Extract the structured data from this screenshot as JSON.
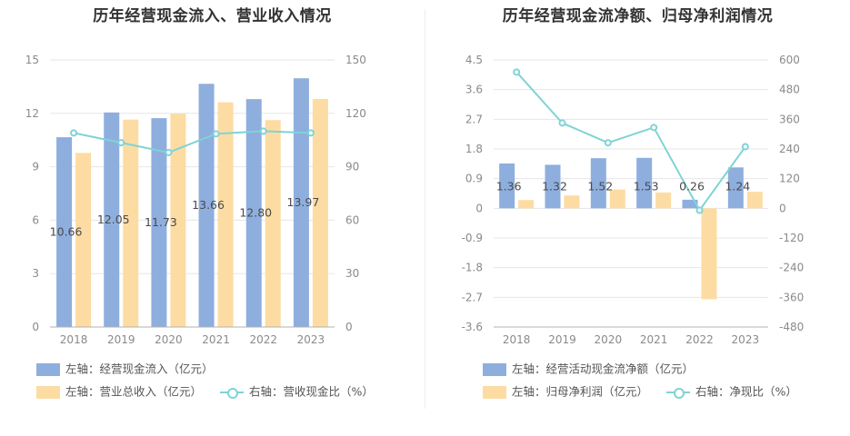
{
  "colors": {
    "bar_primary": "#8eaede",
    "bar_secondary": "#fddca3",
    "line": "#7fd3d6",
    "grid": "#e6e6ea",
    "axis_text": "#8a8a8a",
    "label_text": "#4a4a4a"
  },
  "left_panel": {
    "title": "历年经营现金流入、营业收入情况",
    "legend": [
      {
        "label": "左轴：经营现金流入（亿元）",
        "kind": "bar_primary"
      },
      {
        "label": "左轴：营业总收入（亿元）",
        "kind": "bar_secondary"
      },
      {
        "label": "右轴：营收现金比（%）",
        "kind": "line"
      }
    ]
  },
  "right_panel": {
    "title": "历年经营现金流净额、归母净利润情况",
    "legend": [
      {
        "label": "左轴：经营活动现金流净额（亿元）",
        "kind": "bar_primary"
      },
      {
        "label": "左轴：归母净利润（亿元）",
        "kind": "bar_secondary"
      },
      {
        "label": "右轴：净现比（%）",
        "kind": "line"
      }
    ]
  },
  "chart_data": [
    {
      "type": "bar",
      "title": "历年经营现金流入、营业收入情况",
      "categories": [
        "2018",
        "2019",
        "2020",
        "2021",
        "2022",
        "2023"
      ],
      "ylim_left": [
        0,
        15
      ],
      "yticks_left": [
        "0",
        "3",
        "6",
        "9",
        "12",
        "15"
      ],
      "ylim_right": [
        0,
        150
      ],
      "yticks_right": [
        "0",
        "30",
        "60",
        "90",
        "120",
        "150"
      ],
      "grid": true,
      "series": [
        {
          "name": "左轴：经营现金流入（亿元）",
          "kind": "bar_primary",
          "axis": "left",
          "values": [
            10.66,
            12.05,
            11.73,
            13.66,
            12.8,
            13.97
          ],
          "labels": [
            "10.66",
            "12.05",
            "11.73",
            "13.66",
            "12.80",
            "13.97"
          ]
        },
        {
          "name": "左轴：营业总收入（亿元）",
          "kind": "bar_secondary",
          "axis": "left",
          "values": [
            9.78,
            11.65,
            11.98,
            12.62,
            11.62,
            12.81
          ]
        },
        {
          "name": "右轴：营收现金比（%）",
          "kind": "line",
          "axis": "right",
          "values": [
            109,
            103.5,
            98,
            108.5,
            110,
            109
          ]
        }
      ]
    },
    {
      "type": "bar",
      "title": "历年经营现金流净额、归母净利润情况",
      "categories": [
        "2018",
        "2019",
        "2020",
        "2021",
        "2022",
        "2023"
      ],
      "ylim_left": [
        -3.6,
        4.5
      ],
      "yticks_left": [
        "-3.6",
        "-2.7",
        "-1.8",
        "-0.9",
        "0",
        "0.9",
        "1.8",
        "2.7",
        "3.6",
        "4.5"
      ],
      "ylim_right": [
        -480,
        600
      ],
      "yticks_right": [
        "-480",
        "-360",
        "-240",
        "-120",
        "0",
        "120",
        "240",
        "360",
        "480",
        "600"
      ],
      "grid": true,
      "series": [
        {
          "name": "左轴：经营活动现金流净额（亿元）",
          "kind": "bar_primary",
          "axis": "left",
          "values": [
            1.36,
            1.32,
            1.52,
            1.53,
            0.26,
            1.24
          ],
          "labels": [
            "1.36",
            "1.32",
            "1.52",
            "1.53",
            "0.26",
            "1.24"
          ]
        },
        {
          "name": "左轴：归母净利润（亿元）",
          "kind": "bar_secondary",
          "axis": "left",
          "values": [
            0.25,
            0.39,
            0.57,
            0.48,
            -2.76,
            0.5
          ]
        },
        {
          "name": "右轴：净现比（%）",
          "kind": "line",
          "axis": "right",
          "values": [
            551,
            345,
            265,
            327,
            -8,
            249
          ]
        }
      ]
    }
  ]
}
